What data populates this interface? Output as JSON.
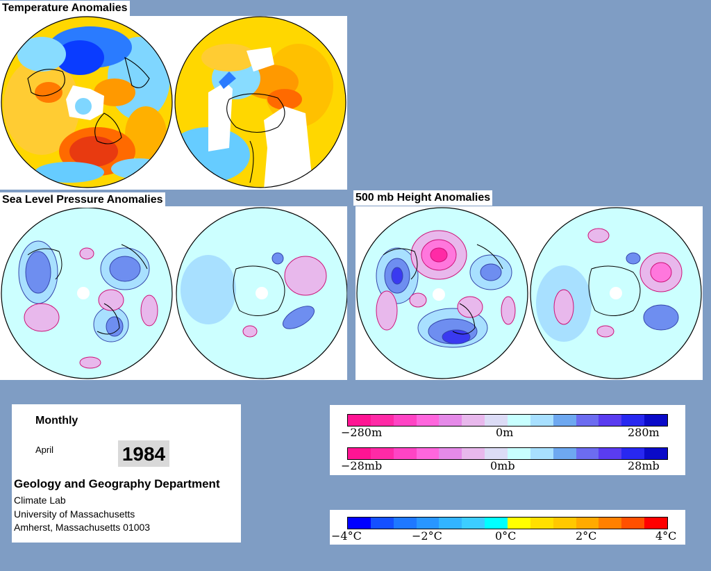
{
  "titles": {
    "temperature": "Temperature Anomalies",
    "slp": "Sea Level Pressure Anomalies",
    "height500": "500 mb Height Anomalies"
  },
  "info": {
    "frequency": "Monthly",
    "month": "April",
    "year": "1984",
    "department": "Geology and Geography Department",
    "lines": [
      "Climate Lab",
      "University of Massachusetts",
      "Amherst, Massachusetts 01003"
    ]
  },
  "legends": {
    "height": {
      "left": "−280m",
      "mid": "0m",
      "right": "280m"
    },
    "pressure": {
      "left": "−28mb",
      "mid": "0mb",
      "right": "28mb"
    },
    "temperature": {
      "l1": "−4°C",
      "l2": "−2°C",
      "l3": "0°C",
      "l4": "2°C",
      "l5": "4°C"
    }
  },
  "colors": {
    "height_pressure_scale": [
      "#ff1493",
      "#ff2aa6",
      "#ff44c4",
      "#ff66dd",
      "#e58ae8",
      "#e8b8ec",
      "#dcdcf6",
      "#c8ffff",
      "#a8e0ff",
      "#6ea8f0",
      "#6c6cf0",
      "#5a3cf0",
      "#2828f0",
      "#0a0ac8"
    ],
    "temperature_scale": [
      "#0000ff",
      "#1450ff",
      "#1e78ff",
      "#2896ff",
      "#32b4ff",
      "#3ccdff",
      "#00ffff",
      "#ffff00",
      "#ffe000",
      "#ffc800",
      "#ffaa00",
      "#ff8000",
      "#ff5000",
      "#ff0000"
    ]
  }
}
